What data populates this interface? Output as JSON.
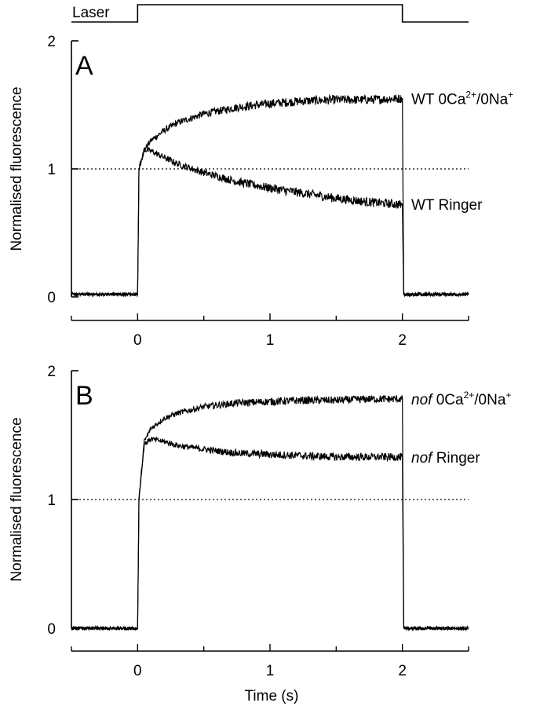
{
  "chart_data": [
    {
      "type": "line",
      "panel_label": "A",
      "ylabel": "Normalised fluorescence",
      "xlim": [
        -0.5,
        2.5
      ],
      "ylim": [
        0,
        2
      ],
      "x_ticks": [
        0,
        1,
        2
      ],
      "y_ticks": [
        0,
        1,
        2
      ],
      "reference_line": {
        "y": 1,
        "style": "dotted"
      },
      "series": [
        {
          "name": "WT 0Ca2+/0Na+",
          "label_main": "WT 0Ca",
          "label_sup1": "2+",
          "label_mid": "/0Na",
          "label_sup2": "+",
          "x": [
            -0.5,
            0,
            0.01,
            0.05,
            0.1,
            0.2,
            0.3,
            0.5,
            0.75,
            1.0,
            1.25,
            1.5,
            1.75,
            2.0,
            2.01,
            2.5
          ],
          "y": [
            0.02,
            0.02,
            1.0,
            1.15,
            1.22,
            1.3,
            1.36,
            1.43,
            1.48,
            1.51,
            1.53,
            1.54,
            1.54,
            1.55,
            0.02,
            0.02
          ]
        },
        {
          "name": "WT Ringer",
          "label_main": "WT Ringer",
          "x": [
            -0.5,
            0,
            0.01,
            0.05,
            0.1,
            0.2,
            0.3,
            0.5,
            0.75,
            1.0,
            1.25,
            1.5,
            1.75,
            2.0,
            2.01,
            2.5
          ],
          "y": [
            0.02,
            0.02,
            1.0,
            1.15,
            1.14,
            1.09,
            1.04,
            0.97,
            0.9,
            0.85,
            0.81,
            0.77,
            0.74,
            0.72,
            0.02,
            0.02
          ]
        }
      ]
    },
    {
      "type": "line",
      "panel_label": "B",
      "ylabel": "Normalised fluorescence",
      "xlabel": "Time (s)",
      "xlim": [
        -0.5,
        2.5
      ],
      "ylim": [
        0,
        2
      ],
      "x_ticks": [
        0,
        1,
        2
      ],
      "y_ticks": [
        0,
        1,
        2
      ],
      "reference_line": {
        "y": 1,
        "style": "dotted"
      },
      "series": [
        {
          "name": "nof 0Ca2+/0Na+",
          "label_italic": "nof",
          "label_main": " 0Ca",
          "label_sup1": "2+",
          "label_mid": "/0Na",
          "label_sup2": "+",
          "x": [
            -0.5,
            0,
            0.01,
            0.05,
            0.1,
            0.2,
            0.3,
            0.5,
            0.75,
            1.0,
            1.25,
            1.5,
            1.75,
            2.0,
            2.01,
            2.5
          ],
          "y": [
            0.0,
            0.0,
            1.0,
            1.45,
            1.55,
            1.63,
            1.67,
            1.72,
            1.75,
            1.76,
            1.77,
            1.77,
            1.78,
            1.78,
            0.0,
            0.0
          ]
        },
        {
          "name": "nof Ringer",
          "label_italic": "nof",
          "label_main": " Ringer",
          "x": [
            -0.5,
            0,
            0.01,
            0.05,
            0.1,
            0.2,
            0.3,
            0.5,
            0.75,
            1.0,
            1.25,
            1.5,
            1.75,
            2.0,
            2.01,
            2.5
          ],
          "y": [
            0.0,
            0.0,
            1.0,
            1.43,
            1.47,
            1.45,
            1.42,
            1.39,
            1.36,
            1.35,
            1.34,
            1.33,
            1.33,
            1.33,
            0.0,
            0.0
          ]
        }
      ]
    }
  ],
  "laser": {
    "label": "Laser",
    "on_interval": [
      0,
      2
    ]
  }
}
